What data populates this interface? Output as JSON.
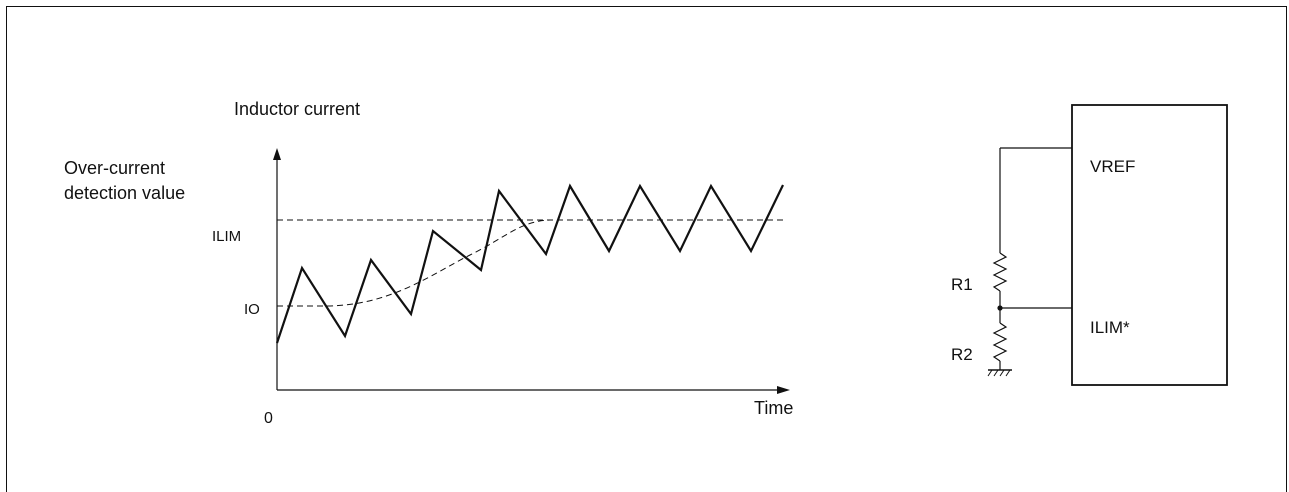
{
  "graph": {
    "y_axis_label": "Inductor current",
    "ocd_label_line1": "Over-current",
    "ocd_label_line2": "detection value",
    "ilim_label": "ILIM",
    "io_label": "IO",
    "origin_label": "0",
    "x_axis_label": "Time"
  },
  "circuit": {
    "vref_label": "VREF",
    "ilim_pin_label": "ILIM*",
    "r1_label": "R1",
    "r2_label": "R2"
  }
}
